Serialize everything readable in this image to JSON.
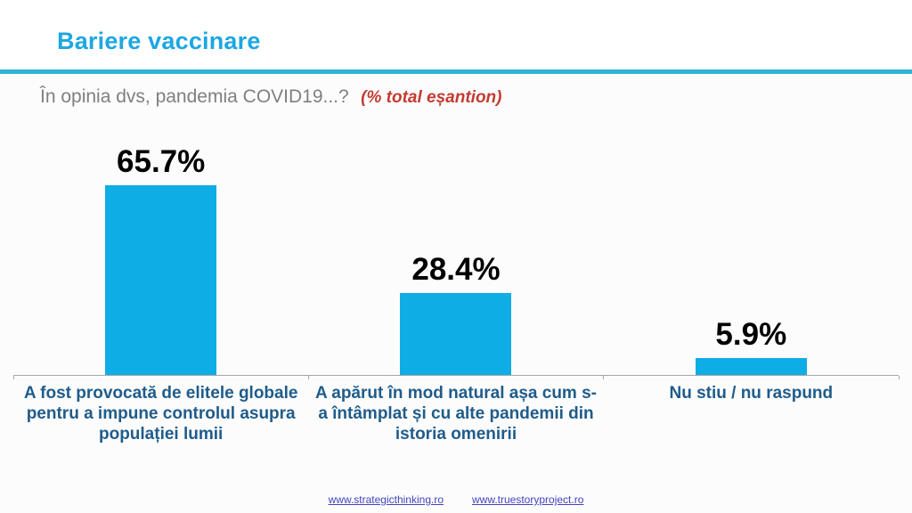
{
  "slide": {
    "title": "Bariere vaccinare",
    "question": "În opinia dvs, pandemia COVID19...?",
    "question_note": "(% total eșantion)",
    "footer_links": [
      {
        "label": "www.strategicthinking.ro"
      },
      {
        "label": "www.truestoryproject.ro"
      }
    ]
  },
  "chart_data": {
    "type": "bar",
    "title": "În opinia dvs, pandemia COVID19...? (% total eșantion)",
    "categories": [
      "A fost provocată de elitele globale pentru a impune controlul asupra populației lumii",
      "A apărut în mod natural așa cum s-a întâmplat și cu alte pandemii din istoria omenirii",
      "Nu stiu / nu raspund"
    ],
    "values": [
      65.7,
      28.4,
      5.9
    ],
    "value_labels": [
      "65.7%",
      "28.4%",
      "5.9%"
    ],
    "xlabel": "",
    "ylabel": "",
    "ylim": [
      0,
      70
    ],
    "grid": false,
    "legend": false,
    "bar_color": "#0fade5"
  },
  "colors": {
    "title_cyan": "#1ca7e2",
    "rule_cyan": "#31b2d6",
    "bar_cyan": "#0fade5",
    "category_blue": "#1f5c8b",
    "note_red": "#c43b32",
    "subtitle_gray": "#7f7f7f",
    "axis_gray": "#a6a6a6",
    "link_blue": "#4343be",
    "value_black": "#000000"
  }
}
